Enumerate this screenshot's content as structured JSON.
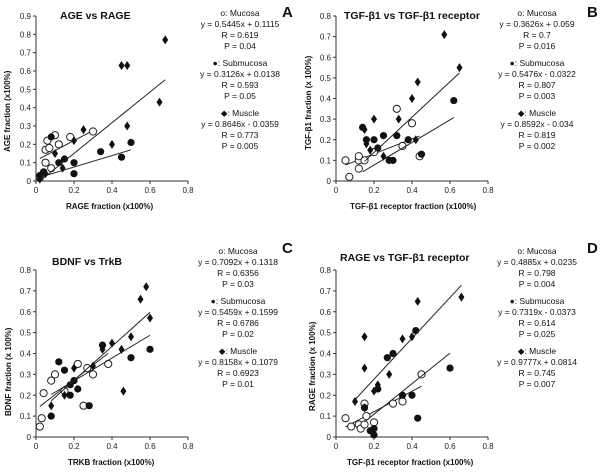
{
  "chart_data": [
    {
      "type": "scatter",
      "letter": "A",
      "title": "AGE vs RAGE",
      "xlabel": "RAGE fraction (x100%)",
      "ylabel": "AGE fraction (x100%)",
      "xlim": [
        0,
        0.8
      ],
      "ylim": [
        0,
        0.9
      ],
      "xticks": [
        "0",
        "0.2",
        "0.4",
        "0.6",
        "0.8"
      ],
      "yticks": [
        "0",
        "0.1",
        "0.2",
        "0.3",
        "0.4",
        "0.5",
        "0.6",
        "0.7",
        "0.8",
        "0.9"
      ],
      "series": [
        {
          "name": "Mucosa",
          "marker": "open-circle",
          "slope": 0.5445,
          "intercept": 0.1115,
          "equation": "y = 0.5445x + 0.1115",
          "r": "R = 0.619",
          "p": "P = 0.04",
          "points": [
            [
              0.05,
              0.17
            ],
            [
              0.07,
              0.18
            ],
            [
              0.06,
              0.22
            ],
            [
              0.12,
              0.2
            ],
            [
              0.18,
              0.24
            ],
            [
              0.3,
              0.27
            ],
            [
              0.08,
              0.07
            ],
            [
              0.02,
              0.02
            ],
            [
              0.1,
              0.25
            ],
            [
              0.05,
              0.1
            ]
          ]
        },
        {
          "name": "Submucosa",
          "marker": "filled-circle",
          "slope": 0.3126,
          "intercept": 0.0138,
          "equation": "y = 0.3126x + 0.0138",
          "r": "R = 0.593",
          "p": "P = 0.05",
          "points": [
            [
              0.02,
              0.03
            ],
            [
              0.04,
              0.05
            ],
            [
              0.08,
              0.24
            ],
            [
              0.12,
              0.1
            ],
            [
              0.15,
              0.12
            ],
            [
              0.2,
              0.1
            ],
            [
              0.2,
              0.04
            ],
            [
              0.34,
              0.16
            ],
            [
              0.5,
              0.21
            ],
            [
              0.45,
              0.13
            ]
          ]
        },
        {
          "name": "Muscle",
          "marker": "filled-diamond",
          "slope": 0.8646,
          "intercept": -0.0359,
          "equation": "y = 0.8646x - 0.0359",
          "r": "R = 0.773",
          "p": "P = 0.005",
          "points": [
            [
              0.68,
              0.77
            ],
            [
              0.45,
              0.63
            ],
            [
              0.48,
              0.63
            ],
            [
              0.65,
              0.43
            ],
            [
              0.48,
              0.3
            ],
            [
              0.4,
              0.2
            ],
            [
              0.25,
              0.28
            ],
            [
              0.2,
              0.22
            ],
            [
              0.1,
              0.15
            ],
            [
              0.05,
              0.04
            ],
            [
              0.02,
              0.01
            ],
            [
              0.14,
              0.07
            ]
          ]
        }
      ]
    },
    {
      "type": "scatter",
      "letter": "B",
      "title": "TGF-β1 vs TGF-β1 receptor",
      "xlabel": "TGF-β1 receptor fraction (x100%)",
      "ylabel": "TGF-β1 fraction (x 100%)",
      "xlim": [
        0,
        0.8
      ],
      "ylim": [
        0,
        0.8
      ],
      "xticks": [
        "0",
        "0.2",
        "0.4",
        "0.6",
        "0.8"
      ],
      "yticks": [
        "0",
        "0.1",
        "0.2",
        "0.3",
        "0.4",
        "0.5",
        "0.6",
        "0.7",
        "0.8"
      ],
      "series": [
        {
          "name": "Mucosa",
          "marker": "open-circle",
          "slope": 0.3626,
          "intercept": 0.059,
          "equation": "y = 0.3626x + 0.059",
          "r": "R = 0.7",
          "p": "P = 0.016",
          "points": [
            [
              0.05,
              0.1
            ],
            [
              0.07,
              0.02
            ],
            [
              0.12,
              0.06
            ],
            [
              0.12,
              0.1
            ],
            [
              0.15,
              0.1
            ],
            [
              0.2,
              0.14
            ],
            [
              0.32,
              0.35
            ],
            [
              0.35,
              0.17
            ],
            [
              0.44,
              0.12
            ],
            [
              0.4,
              0.28
            ],
            [
              0.12,
              0.12
            ]
          ]
        },
        {
          "name": "Submucosa",
          "marker": "filled-circle",
          "slope": 0.5476,
          "intercept": -0.0322,
          "equation": "y = 0.5476x - 0.0322",
          "r": "R = 0.807",
          "p": "P = 0.003",
          "points": [
            [
              0.14,
              0.26
            ],
            [
              0.16,
              0.2
            ],
            [
              0.2,
              0.2
            ],
            [
              0.22,
              0.16
            ],
            [
              0.25,
              0.22
            ],
            [
              0.28,
              0.1
            ],
            [
              0.32,
              0.22
            ],
            [
              0.38,
              0.2
            ],
            [
              0.45,
              0.13
            ],
            [
              0.62,
              0.39
            ],
            [
              0.3,
              0.1
            ]
          ]
        },
        {
          "name": "Muscle",
          "marker": "filled-diamond",
          "slope": 0.8592,
          "intercept": -0.034,
          "equation": "y = 0.8592x - 0.034",
          "r": "R = 0.819",
          "p": "P = 0.002",
          "points": [
            [
              0.57,
              0.71
            ],
            [
              0.65,
              0.55
            ],
            [
              0.43,
              0.48
            ],
            [
              0.4,
              0.4
            ],
            [
              0.2,
              0.3
            ],
            [
              0.15,
              0.25
            ],
            [
              0.18,
              0.15
            ],
            [
              0.25,
              0.12
            ],
            [
              0.33,
              0.3
            ],
            [
              0.42,
              0.2
            ],
            [
              0.16,
              0.18
            ]
          ]
        }
      ]
    },
    {
      "type": "scatter",
      "letter": "C",
      "title": "BDNF vs TrkB",
      "xlabel": "TRKB fraction (x100%)",
      "ylabel": "BDNF fraction (x 100%)",
      "xlim": [
        0,
        0.8
      ],
      "ylim": [
        0,
        0.8
      ],
      "xticks": [
        "0",
        "0.2",
        "0.4",
        "0.6",
        "0.8"
      ],
      "yticks": [
        "0",
        "0.1",
        "0.2",
        "0.3",
        "0.4",
        "0.5",
        "0.6",
        "0.7",
        "0.8"
      ],
      "series": [
        {
          "name": "Mucosa",
          "marker": "open-circle",
          "slope": 0.7092,
          "intercept": 0.1318,
          "equation": "y = 0.7092x + 0.1318",
          "r": "R = 0.6356",
          "p": "P = 0.03",
          "points": [
            [
              0.02,
              0.05
            ],
            [
              0.03,
              0.09
            ],
            [
              0.04,
              0.21
            ],
            [
              0.08,
              0.27
            ],
            [
              0.1,
              0.3
            ],
            [
              0.15,
              0.22
            ],
            [
              0.22,
              0.35
            ],
            [
              0.27,
              0.33
            ],
            [
              0.3,
              0.3
            ],
            [
              0.38,
              0.35
            ],
            [
              0.25,
              0.15
            ]
          ]
        },
        {
          "name": "Submucosa",
          "marker": "filled-circle",
          "slope": 0.5459,
          "intercept": 0.1599,
          "equation": "y = 0.5459x + 0.1599",
          "r": "R = 0.6786",
          "p": "P = 0.02",
          "points": [
            [
              0.08,
              0.1
            ],
            [
              0.12,
              0.36
            ],
            [
              0.15,
              0.32
            ],
            [
              0.18,
              0.25
            ],
            [
              0.2,
              0.27
            ],
            [
              0.22,
              0.23
            ],
            [
              0.28,
              0.15
            ],
            [
              0.35,
              0.44
            ],
            [
              0.5,
              0.38
            ],
            [
              0.6,
              0.42
            ],
            [
              0.18,
              0.2
            ]
          ]
        },
        {
          "name": "Muscle",
          "marker": "filled-diamond",
          "slope": 0.8158,
          "intercept": 0.1079,
          "equation": "y = 0.8158x + 0.1079",
          "r": "R = 0.6923",
          "p": "P = 0.01",
          "points": [
            [
              0.58,
              0.72
            ],
            [
              0.6,
              0.57
            ],
            [
              0.55,
              0.66
            ],
            [
              0.5,
              0.48
            ],
            [
              0.45,
              0.42
            ],
            [
              0.4,
              0.45
            ],
            [
              0.35,
              0.42
            ],
            [
              0.3,
              0.34
            ],
            [
              0.2,
              0.33
            ],
            [
              0.15,
              0.2
            ],
            [
              0.08,
              0.15
            ],
            [
              0.46,
              0.22
            ]
          ]
        }
      ]
    },
    {
      "type": "scatter",
      "letter": "D",
      "title": "RAGE vs TGF-β1 receptor",
      "xlabel": "TGF-β1 receptor fraction (x100%)",
      "ylabel": "RAGE fraction (x 100%)",
      "xlim": [
        0,
        0.8
      ],
      "ylim": [
        0,
        0.8
      ],
      "xticks": [
        "0",
        "0.2",
        "0.4",
        "0.6",
        "0.8"
      ],
      "yticks": [
        "0",
        "0.1",
        "0.2",
        "0.3",
        "0.4",
        "0.5",
        "0.6",
        "0.7",
        "0.8"
      ],
      "series": [
        {
          "name": "Mucosa",
          "marker": "open-circle",
          "slope": 0.4885,
          "intercept": 0.0235,
          "equation": "y = 0.4885x + 0.0235",
          "r": "R = 0.798",
          "p": "P = 0.004",
          "points": [
            [
              0.05,
              0.09
            ],
            [
              0.08,
              0.05
            ],
            [
              0.12,
              0.06
            ],
            [
              0.13,
              0.04
            ],
            [
              0.15,
              0.06
            ],
            [
              0.16,
              0.1
            ],
            [
              0.2,
              0.07
            ],
            [
              0.3,
              0.16
            ],
            [
              0.35,
              0.17
            ],
            [
              0.45,
              0.3
            ],
            [
              0.15,
              0.16
            ]
          ]
        },
        {
          "name": "Submucosa",
          "marker": "filled-circle",
          "slope": 0.7319,
          "intercept": -0.0373,
          "equation": "y = 0.7319x - 0.0373",
          "r": "R = 0.614",
          "p": "P = 0.025",
          "points": [
            [
              0.15,
              0.14
            ],
            [
              0.18,
              0.03
            ],
            [
              0.2,
              0.01
            ],
            [
              0.2,
              0.04
            ],
            [
              0.22,
              0.23
            ],
            [
              0.27,
              0.38
            ],
            [
              0.3,
              0.4
            ],
            [
              0.35,
              0.2
            ],
            [
              0.42,
              0.51
            ],
            [
              0.43,
              0.09
            ],
            [
              0.6,
              0.33
            ],
            [
              0.4,
              0.2
            ]
          ]
        },
        {
          "name": "Muscle",
          "marker": "filled-diamond",
          "slope": 0.9777,
          "intercept": 0.0814,
          "equation": "y = 0.9777x + 0.0814",
          "r": "R = 0.745",
          "p": "P = 0.007",
          "points": [
            [
              0.66,
              0.67
            ],
            [
              0.43,
              0.65
            ],
            [
              0.4,
              0.48
            ],
            [
              0.35,
              0.47
            ],
            [
              0.28,
              0.3
            ],
            [
              0.22,
              0.25
            ],
            [
              0.2,
              0.22
            ],
            [
              0.15,
              0.48
            ],
            [
              0.15,
              0.14
            ],
            [
              0.1,
              0.17
            ],
            [
              0.15,
              0.33
            ]
          ]
        }
      ]
    }
  ]
}
